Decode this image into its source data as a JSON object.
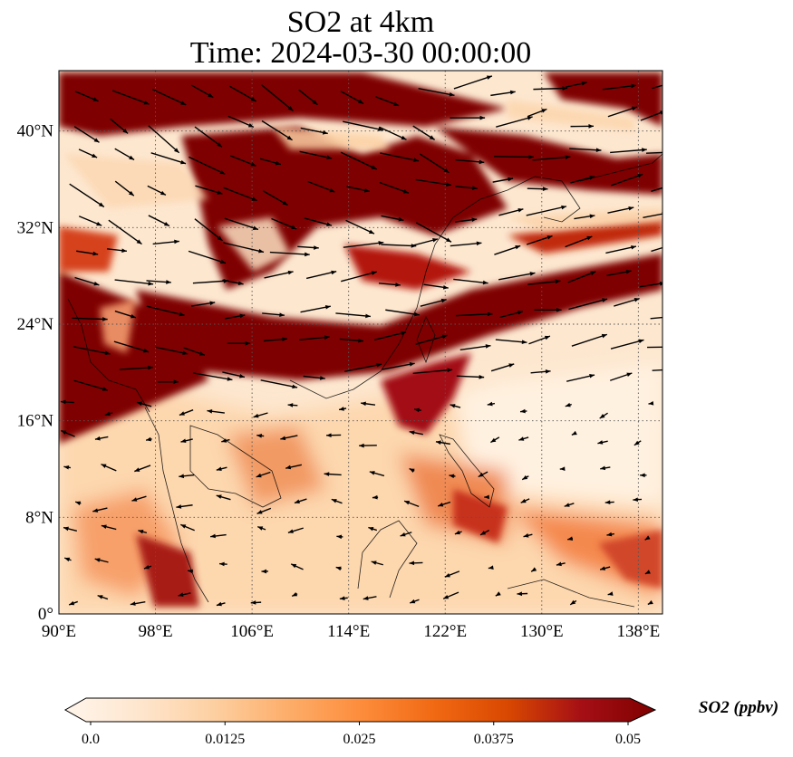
{
  "figure": {
    "title_line1": "SO2 at 4km",
    "title_line2": "Time: 2024-03-30 00:00:00"
  },
  "map": {
    "type": "filled-contour-map-with-wind-vectors",
    "extent": {
      "lon_min": 90,
      "lon_max": 140,
      "lat_min": 0,
      "lat_max": 45
    },
    "gridlines": "dotted",
    "lon_ticks": [
      {
        "value": 90,
        "label": "90°E"
      },
      {
        "value": 98,
        "label": "98°E"
      },
      {
        "value": 106,
        "label": "106°E"
      },
      {
        "value": 114,
        "label": "114°E"
      },
      {
        "value": 122,
        "label": "122°E"
      },
      {
        "value": 130,
        "label": "130°E"
      },
      {
        "value": 138,
        "label": "138°E"
      }
    ],
    "lat_ticks": [
      {
        "value": 0,
        "label": "0°"
      },
      {
        "value": 8,
        "label": "8°N"
      },
      {
        "value": 16,
        "label": "16°N"
      },
      {
        "value": 24,
        "label": "24°N"
      },
      {
        "value": 32,
        "label": "32°N"
      },
      {
        "value": 40,
        "label": "40°N"
      }
    ],
    "field_colors": {
      "low": "#fff5eb",
      "mid": "#fdae6b",
      "high": "#7f0000"
    },
    "wind_vectors": "black arrows, mostly westerly to north-westerly flow north of 16°N, weak easterly flow south of 16°N"
  },
  "colorbar": {
    "label": "SO2 (ppbv)",
    "ticks": [
      "0.0",
      "0.0125",
      "0.025",
      "0.0375",
      "0.05"
    ],
    "range": [
      0.0,
      0.05
    ],
    "extend": "both",
    "colormap": [
      "#fff5eb",
      "#fee6ce",
      "#fdd0a2",
      "#fdae6b",
      "#fd8d3c",
      "#f16913",
      "#d94801",
      "#a50f15",
      "#7f0000"
    ]
  }
}
